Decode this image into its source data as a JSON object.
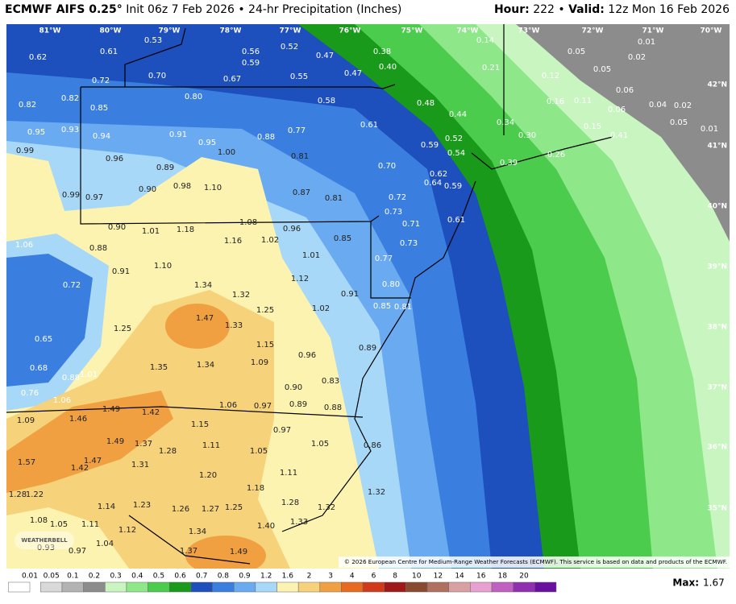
{
  "header": {
    "title": "ECMWF AIFS 0.25°",
    "subtitle": "Init 06z 7 Feb 2026 • 24-hr Precipitation (Inches)",
    "hour_label": "Hour:",
    "hour": "222 •",
    "valid_label": "Valid:",
    "valid": "12z Mon 16 Feb 2026"
  },
  "map": {
    "longitudes": [
      "81°W",
      "80°W",
      "79°W",
      "78°W",
      "77°W",
      "76°W",
      "75°W",
      "74°W",
      "73°W",
      "72°W",
      "71°W",
      "70°W"
    ],
    "latitudes": [
      "42°N",
      "41°N",
      "40°N",
      "39°N",
      "38°N",
      "37°N",
      "36°N",
      "35°N"
    ],
    "labels": [
      "0.53",
      "0.62",
      "0.61",
      "0.56",
      "0.59",
      "0.52",
      "0.47",
      "0.38",
      "0.40",
      "0.47",
      "0.55",
      "0.67",
      "0.70",
      "0.72",
      "0.14",
      "0.21",
      "0.05",
      "0.01",
      "0.02",
      "0.05",
      "0.12",
      "0.16",
      "0.11",
      "0.06",
      "0.04",
      "0.02",
      "0.06",
      "0.05",
      "0.01",
      "0.41",
      "0.15",
      "0.30",
      "0.26",
      "0.39",
      "0.34",
      "0.44",
      "0.48",
      "0.52",
      "0.54",
      "0.59",
      "0.62",
      "0.64",
      "0.59",
      "0.61",
      "0.58",
      "0.61",
      "0.80",
      "0.82",
      "0.82",
      "0.85",
      "0.95",
      "0.93",
      "0.94",
      "0.91",
      "0.95",
      "0.88",
      "0.77",
      "0.81",
      "1.00",
      "0.99",
      "0.96",
      "0.89",
      "0.98",
      "0.90",
      "1.10",
      "0.97",
      "0.99",
      "0.87",
      "0.81",
      "0.70",
      "0.72",
      "0.73",
      "0.71",
      "0.73",
      "0.77",
      "0.80",
      "0.85",
      "0.81",
      "0.90",
      "1.01",
      "1.18",
      "1.08",
      "0.96",
      "1.16",
      "1.02",
      "1.06",
      "0.88",
      "1.01",
      "0.85",
      "1.10",
      "0.91",
      "0.72",
      "1.34",
      "1.12",
      "1.32",
      "1.25",
      "1.02",
      "0.91",
      "1.47",
      "1.33",
      "1.25",
      "0.65",
      "1.15",
      "0.96",
      "0.89",
      "1.01",
      "1.35",
      "1.34",
      "1.09",
      "0.88",
      "0.68",
      "0.83",
      "0.76",
      "0.90",
      "1.06",
      "1.49",
      "1.42",
      "1.06",
      "0.97",
      "0.89",
      "0.88",
      "1.09",
      "1.46",
      "1.15",
      "0.97",
      "1.49",
      "1.37",
      "1.11",
      "1.05",
      "1.05",
      "0.86",
      "1.28",
      "1.47",
      "1.57",
      "1.42",
      "1.31",
      "1.11",
      "1.20",
      "1.18",
      "1.28",
      "1.22",
      "1.32",
      "1.14",
      "1.23",
      "1.26",
      "1.27",
      "1.25",
      "1.28",
      "1.32",
      "1.08",
      "1.05",
      "1.11",
      "1.12",
      "1.33",
      "1.40",
      "1.34",
      "1.04",
      "0.93",
      "0.97",
      "1.37",
      "1.49"
    ],
    "watermark": "WEATHERBELL",
    "credit": "© 2026 European Centre for Medium-Range Weather Forecasts (ECMWF). This service is based on data and products of the ECMWF."
  },
  "colorbar": {
    "levels": [
      0.01,
      0.05,
      0.1,
      0.2,
      0.3,
      0.4,
      0.5,
      0.6,
      0.7,
      0.8,
      0.9,
      1.2,
      1.6,
      2,
      3,
      4,
      6,
      8,
      10,
      12,
      14,
      16,
      18,
      20
    ],
    "colors": [
      "#ffffff",
      "#d9d9d9",
      "#b3b3b3",
      "#8c8c8c",
      "#c8f5c0",
      "#8ee88a",
      "#4ccc4c",
      "#1a9a1a",
      "#1d4fbd",
      "#3a7fe0",
      "#6aaaf0",
      "#a8d8f8",
      "#fdf3b0",
      "#f6d27a",
      "#f0a040",
      "#e86a20",
      "#d03a1a",
      "#a01818",
      "#8a4a30",
      "#b07060",
      "#d8a0a0",
      "#e8a0d0",
      "#c060c0",
      "#9030b0",
      "#6a10a0"
    ]
  },
  "footer": {
    "max_label": "Max:",
    "max_value": "1.67"
  }
}
